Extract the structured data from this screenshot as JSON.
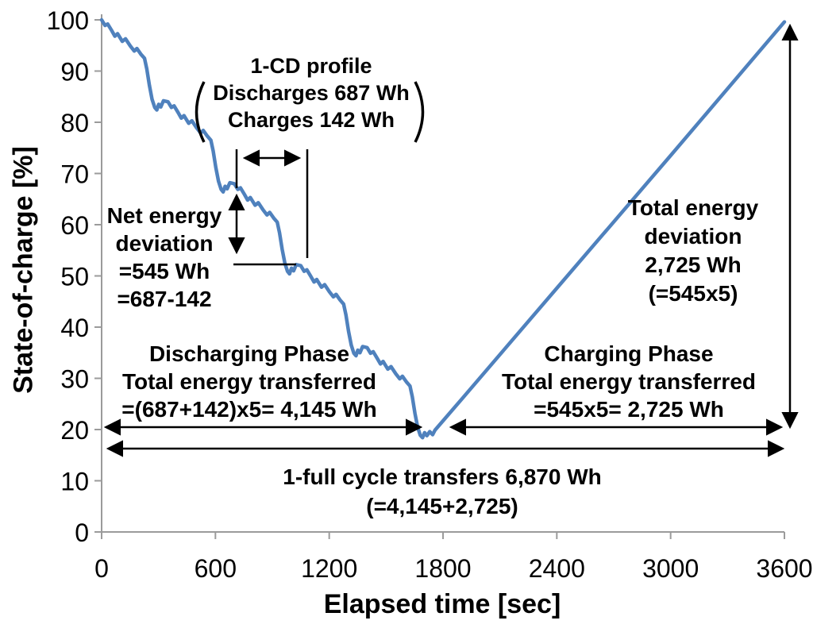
{
  "chart_data": {
    "type": "line",
    "title": "",
    "xlabel": "Elapsed time [sec]",
    "ylabel": "State-of-charge [%]",
    "xlim": [
      0,
      3600
    ],
    "ylim": [
      0,
      100
    ],
    "x_ticks": [
      0,
      600,
      1200,
      1800,
      2400,
      3000,
      3600
    ],
    "y_ticks": [
      0,
      10,
      20,
      30,
      40,
      50,
      60,
      70,
      80,
      90,
      100
    ],
    "grid": false,
    "legend": "none",
    "line_color": "#4F81BD",
    "series": [
      {
        "name": "state-of-charge",
        "points": [
          [
            0,
            100
          ],
          [
            18,
            98.9
          ],
          [
            32,
            99.2
          ],
          [
            53,
            97.9
          ],
          [
            70,
            96.8
          ],
          [
            84,
            97.3
          ],
          [
            109,
            95.8
          ],
          [
            126,
            96.3
          ],
          [
            151,
            94.9
          ],
          [
            172,
            93.9
          ],
          [
            186,
            94.4
          ],
          [
            207,
            93.3
          ],
          [
            226,
            92.5
          ],
          [
            238,
            90.4
          ],
          [
            252,
            87.2
          ],
          [
            266,
            84.5
          ],
          [
            280,
            82.9
          ],
          [
            291,
            82.4
          ],
          [
            301,
            83.5
          ],
          [
            312,
            83.0
          ],
          [
            326,
            84.2
          ],
          [
            350,
            84
          ],
          [
            368,
            82.9
          ],
          [
            382,
            83.2
          ],
          [
            403,
            81.9
          ],
          [
            420,
            80.8
          ],
          [
            434,
            81.3
          ],
          [
            459,
            79.8
          ],
          [
            476,
            80.3
          ],
          [
            501,
            78.9
          ],
          [
            522,
            77.9
          ],
          [
            536,
            78.4
          ],
          [
            557,
            77.3
          ],
          [
            576,
            76.5
          ],
          [
            588,
            74.4
          ],
          [
            602,
            71.2
          ],
          [
            616,
            68.5
          ],
          [
            630,
            66.9
          ],
          [
            641,
            66.4
          ],
          [
            651,
            67.5
          ],
          [
            662,
            67.0
          ],
          [
            676,
            68.2
          ],
          [
            700,
            68
          ],
          [
            718,
            66.9
          ],
          [
            732,
            67.2
          ],
          [
            753,
            65.9
          ],
          [
            770,
            64.8
          ],
          [
            784,
            65.3
          ],
          [
            809,
            63.8
          ],
          [
            826,
            64.3
          ],
          [
            851,
            62.9
          ],
          [
            872,
            61.9
          ],
          [
            886,
            62.4
          ],
          [
            907,
            61.3
          ],
          [
            926,
            60.5
          ],
          [
            938,
            58.4
          ],
          [
            952,
            55.2
          ],
          [
            966,
            52.5
          ],
          [
            980,
            50.9
          ],
          [
            991,
            50.4
          ],
          [
            1001,
            51.5
          ],
          [
            1012,
            51.0
          ],
          [
            1026,
            52.2
          ],
          [
            1050,
            52
          ],
          [
            1068,
            50.9
          ],
          [
            1082,
            51.2
          ],
          [
            1103,
            49.9
          ],
          [
            1120,
            48.8
          ],
          [
            1134,
            49.3
          ],
          [
            1159,
            47.8
          ],
          [
            1176,
            48.3
          ],
          [
            1201,
            46.9
          ],
          [
            1222,
            45.9
          ],
          [
            1236,
            46.4
          ],
          [
            1257,
            45.3
          ],
          [
            1276,
            44.5
          ],
          [
            1288,
            42.4
          ],
          [
            1302,
            39.2
          ],
          [
            1316,
            36.5
          ],
          [
            1330,
            34.9
          ],
          [
            1341,
            34.4
          ],
          [
            1351,
            35.5
          ],
          [
            1362,
            35.0
          ],
          [
            1376,
            36.2
          ],
          [
            1400,
            36
          ],
          [
            1418,
            34.9
          ],
          [
            1432,
            35.2
          ],
          [
            1453,
            33.9
          ],
          [
            1470,
            32.8
          ],
          [
            1484,
            33.3
          ],
          [
            1509,
            31.8
          ],
          [
            1526,
            32.3
          ],
          [
            1551,
            30.9
          ],
          [
            1572,
            29.9
          ],
          [
            1586,
            30.4
          ],
          [
            1607,
            29.3
          ],
          [
            1626,
            28.5
          ],
          [
            1638,
            26.4
          ],
          [
            1652,
            23.2
          ],
          [
            1666,
            20.5
          ],
          [
            1680,
            18.9
          ],
          [
            1692,
            18.4
          ],
          [
            1703,
            19.4
          ],
          [
            1715,
            18.8
          ],
          [
            1730,
            19.6
          ],
          [
            1745,
            19.0
          ],
          [
            1758,
            19.9
          ],
          [
            1900,
            26.0
          ],
          [
            2400,
            47.6
          ],
          [
            3000,
            73.5
          ],
          [
            3600,
            99.6
          ]
        ]
      }
    ],
    "annotations": {
      "cd_profile": {
        "title": "1-CD profile",
        "line1": "Discharges 687 Wh",
        "line2": "Charges 142 Wh"
      },
      "net_energy": {
        "line1": "Net energy",
        "line2": "deviation",
        "line3": "=545 Wh",
        "line4": "=687-142"
      },
      "discharging_phase": {
        "line1": "Discharging Phase",
        "line2": "Total energy transferred",
        "line3": "=(687+142)x5= 4,145 Wh"
      },
      "charging_phase": {
        "line1": "Charging Phase",
        "line2": "Total energy transferred",
        "line3": "=545x5= 2,725 Wh"
      },
      "total_deviation": {
        "line1": "Total energy",
        "line2": "deviation",
        "line3": "2,725 Wh",
        "line4": "(=545x5)"
      },
      "full_cycle": {
        "line1": "1-full cycle transfers 6,870 Wh",
        "line2": "(=4,145+2,725)"
      }
    }
  }
}
